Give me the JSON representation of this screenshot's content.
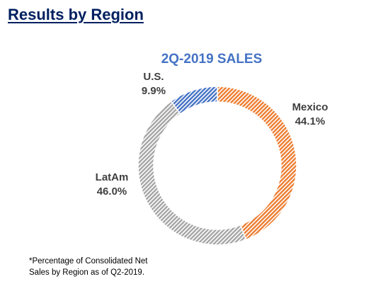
{
  "slide": {
    "title": "Results by Region"
  },
  "chart_data": {
    "type": "pie",
    "style": "donut",
    "title": "2Q-2019 SALES",
    "title_color": "#4472C4",
    "categories": [
      "Mexico",
      "LatAm",
      "U.S."
    ],
    "values": [
      44.1,
      46.0,
      9.9
    ],
    "value_labels": [
      "44.1%",
      "46.0%",
      "9.9%"
    ],
    "colors": [
      "#ED7D31",
      "#A5A5A5",
      "#4472C4"
    ],
    "fill_pattern": "diagonal-hatch",
    "start": "top, clockwise",
    "legend": "none (data labels beside slices)"
  },
  "footnote": {
    "line1": "*Percentage of Consolidated Net",
    "line2": "Sales by Region as of Q2-2019."
  }
}
